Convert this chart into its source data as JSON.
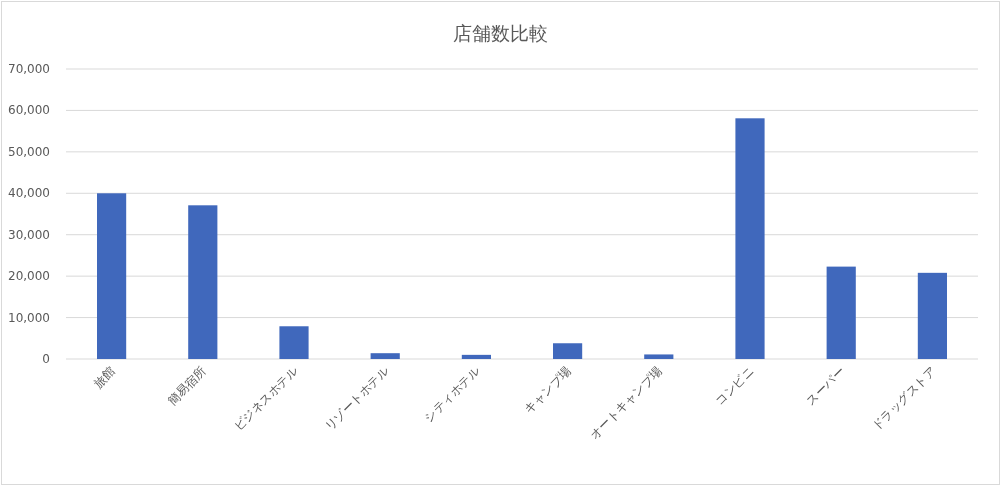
{
  "chart_data": {
    "type": "bar",
    "title": "店舗数比較",
    "categories": [
      "旅館",
      "簡易宿所",
      "ビジネスホテル",
      "リゾートホテル",
      "シティホテル",
      "キャンプ場",
      "オートキャンプ場",
      "コンビニ",
      "スーパー",
      "ドラッグストア"
    ],
    "values": [
      40000,
      37100,
      7900,
      1400,
      1000,
      3800,
      1100,
      58100,
      22300,
      20800
    ],
    "color": "#4068bc",
    "ylim": [
      0,
      70000
    ],
    "yticks": [
      {
        "value": 0,
        "label": "0"
      },
      {
        "value": 10000,
        "label": "10,000"
      },
      {
        "value": 20000,
        "label": "20,000"
      },
      {
        "value": 30000,
        "label": "30,000"
      },
      {
        "value": 40000,
        "label": "40,000"
      },
      {
        "value": 50000,
        "label": "50,000"
      },
      {
        "value": 60000,
        "label": "60,000"
      },
      {
        "value": 70000,
        "label": "70,000"
      }
    ],
    "grid": "y"
  }
}
